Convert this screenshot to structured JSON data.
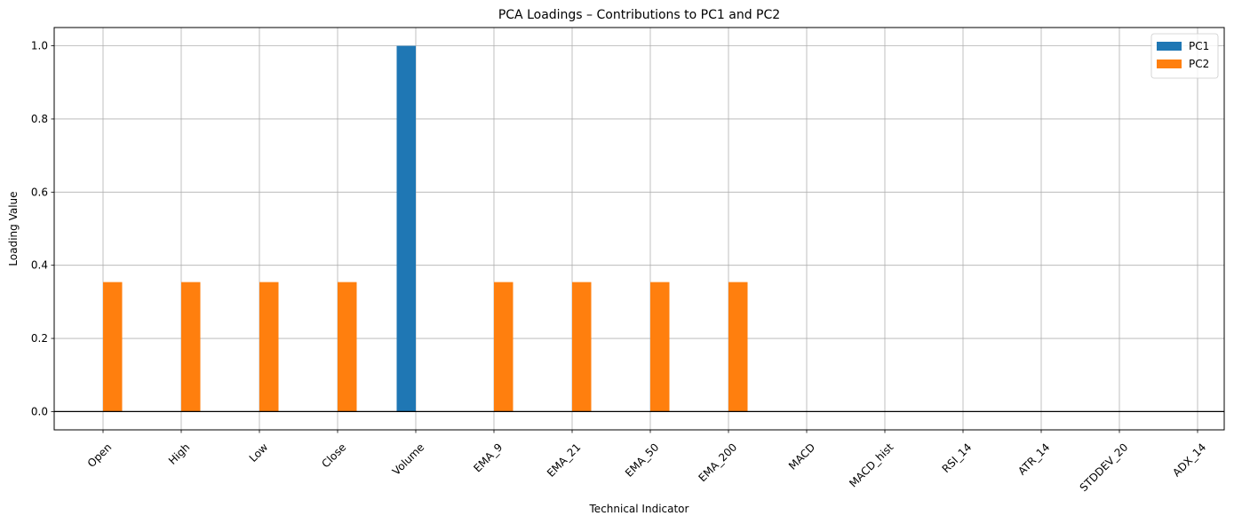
{
  "chart_data": {
    "type": "bar",
    "title": "PCA Loadings – Contributions to PC1 and PC2",
    "xlabel": "Technical Indicator",
    "ylabel": "Loading Value",
    "categories": [
      "Open",
      "High",
      "Low",
      "Close",
      "Volume",
      "EMA_9",
      "EMA_21",
      "EMA_50",
      "EMA_200",
      "MACD",
      "MACD_hist",
      "RSI_14",
      "ATR_14",
      "STDDEV_20",
      "ADX_14"
    ],
    "series": [
      {
        "name": "PC1",
        "color": "#1f77b4",
        "values": [
          0,
          0,
          0,
          0,
          1.0,
          0,
          0,
          0,
          0,
          0,
          0,
          0,
          0,
          0,
          0
        ]
      },
      {
        "name": "PC2",
        "color": "#ff7f0e",
        "values": [
          0.354,
          0.354,
          0.354,
          0.354,
          0,
          0.354,
          0.354,
          0.354,
          0.354,
          0,
          0,
          0,
          0,
          0,
          0
        ]
      }
    ],
    "ylim": [
      -0.05,
      1.05
    ],
    "yticks": [
      "0.0",
      "0.2",
      "0.4",
      "0.6",
      "0.8",
      "1.0"
    ],
    "grid": true,
    "legend_position": "top-right",
    "zero_line": true
  }
}
